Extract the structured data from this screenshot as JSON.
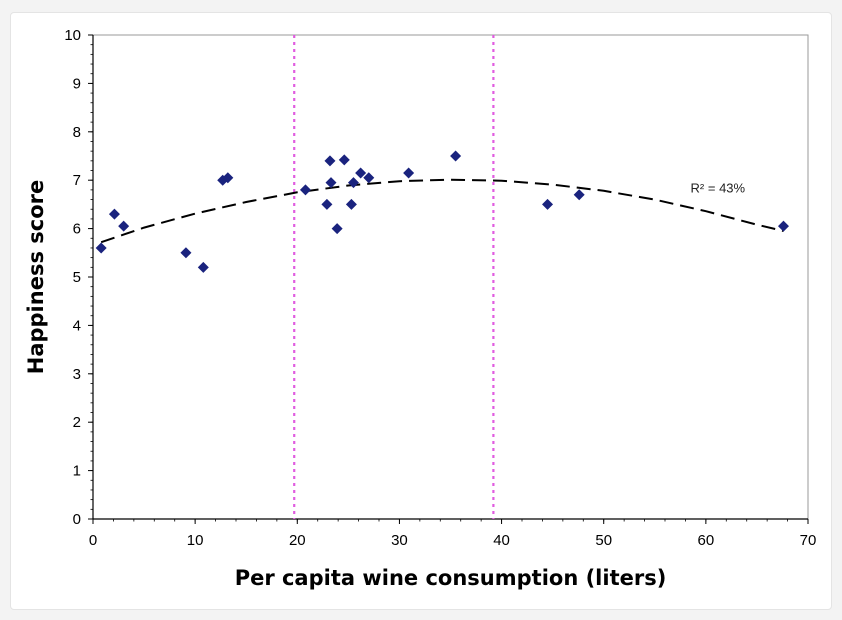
{
  "chart_data": {
    "type": "scatter",
    "title": "",
    "xlabel": "Per capita wine consumption (liters)",
    "ylabel": "Happiness score",
    "xlim": [
      0,
      70
    ],
    "ylim": [
      0,
      10
    ],
    "x_ticks": [
      0,
      10,
      20,
      30,
      40,
      50,
      60,
      70
    ],
    "y_ticks": [
      0,
      1,
      2,
      3,
      4,
      5,
      6,
      7,
      8,
      9,
      10
    ],
    "grid": false,
    "series": [
      {
        "marker": "diamond",
        "color": "#1a237e",
        "points": [
          {
            "x": 0.8,
            "y": 5.6
          },
          {
            "x": 2.1,
            "y": 6.3
          },
          {
            "x": 3.0,
            "y": 6.05
          },
          {
            "x": 9.1,
            "y": 5.5
          },
          {
            "x": 10.8,
            "y": 5.2
          },
          {
            "x": 12.7,
            "y": 7.0
          },
          {
            "x": 13.2,
            "y": 7.05
          },
          {
            "x": 20.8,
            "y": 6.8
          },
          {
            "x": 22.9,
            "y": 6.5
          },
          {
            "x": 23.2,
            "y": 7.4
          },
          {
            "x": 23.3,
            "y": 6.95
          },
          {
            "x": 23.9,
            "y": 6.0
          },
          {
            "x": 24.6,
            "y": 7.42
          },
          {
            "x": 25.3,
            "y": 6.5
          },
          {
            "x": 25.5,
            "y": 6.95
          },
          {
            "x": 26.2,
            "y": 7.15
          },
          {
            "x": 27.0,
            "y": 7.05
          },
          {
            "x": 30.9,
            "y": 7.15
          },
          {
            "x": 35.5,
            "y": 7.5
          },
          {
            "x": 44.5,
            "y": 6.5
          },
          {
            "x": 47.6,
            "y": 6.7
          },
          {
            "x": 67.6,
            "y": 6.05
          }
        ]
      }
    ],
    "trendline": {
      "style": "dashed",
      "color": "#000000",
      "x": [
        0.8,
        5,
        10,
        15,
        20,
        25,
        30,
        35,
        40,
        45,
        50,
        55,
        60,
        65,
        67.6
      ],
      "y": [
        5.72,
        6.02,
        6.31,
        6.55,
        6.75,
        6.89,
        6.98,
        7.01,
        6.99,
        6.91,
        6.78,
        6.6,
        6.36,
        6.08,
        5.95
      ],
      "label": "R² = 43%"
    },
    "vertical_reference_lines": {
      "style": "dotted",
      "color": "#e05ce0",
      "x": [
        19.7,
        39.2
      ]
    }
  },
  "colors": {
    "marker": "#1a237e",
    "reference_line": "#e05ce0",
    "trendline": "#000000",
    "axis": "#000000"
  }
}
